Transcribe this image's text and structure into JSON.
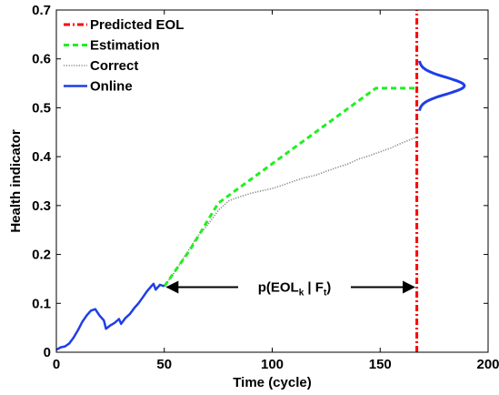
{
  "chart_data": {
    "type": "line",
    "title": "",
    "xlabel": "Time (cycle)",
    "ylabel": "Health indicator",
    "xlim": [
      0,
      200
    ],
    "ylim": [
      0,
      0.7
    ],
    "xticks": [
      "0",
      "50",
      "100",
      "150",
      "200"
    ],
    "yticks": [
      "0",
      "0.1",
      "0.2",
      "0.3",
      "0.4",
      "0.5",
      "0.6",
      "0.7"
    ],
    "grid": false,
    "legend_position": "top-left",
    "series": [
      {
        "name": "Predicted EOL",
        "style": "dash-dot",
        "color": "#ff0000",
        "x": [
          167,
          167
        ],
        "y": [
          0,
          0.7
        ]
      },
      {
        "name": "Estimation",
        "style": "dashed",
        "color": "#22ee22",
        "x": [
          50,
          62,
          75,
          148,
          167
        ],
        "y": [
          0.135,
          0.21,
          0.305,
          0.54,
          0.54
        ]
      },
      {
        "name": "Correct",
        "style": "dotted",
        "color": "#888888",
        "x": [
          50,
          55,
          60,
          65,
          70,
          75,
          80,
          85,
          90,
          95,
          100,
          105,
          110,
          115,
          120,
          125,
          130,
          135,
          140,
          145,
          150,
          155,
          160,
          167
        ],
        "y": [
          0.135,
          0.165,
          0.2,
          0.235,
          0.26,
          0.29,
          0.31,
          0.318,
          0.325,
          0.33,
          0.335,
          0.342,
          0.35,
          0.357,
          0.362,
          0.37,
          0.378,
          0.385,
          0.395,
          0.402,
          0.41,
          0.418,
          0.428,
          0.44
        ]
      },
      {
        "name": "Online",
        "style": "solid",
        "color": "#1f3ee6",
        "x": [
          0,
          2,
          4,
          6,
          8,
          10,
          12,
          14,
          16,
          18,
          20,
          22,
          23,
          25,
          27,
          29,
          30,
          32,
          34,
          36,
          38,
          40,
          42,
          44,
          45,
          46,
          48,
          50
        ],
        "y": [
          0.005,
          0.01,
          0.012,
          0.018,
          0.03,
          0.045,
          0.062,
          0.075,
          0.085,
          0.088,
          0.075,
          0.065,
          0.048,
          0.055,
          0.06,
          0.068,
          0.058,
          0.07,
          0.078,
          0.09,
          0.1,
          0.112,
          0.125,
          0.135,
          0.14,
          0.128,
          0.138,
          0.135
        ]
      }
    ],
    "distribution": {
      "color": "#1f3ee6",
      "mean": 0.545,
      "sd": 0.017,
      "x_base": 168,
      "x_peak": 189
    },
    "annotation": {
      "text_main": "p(EOL",
      "sub_k": "k",
      "sep": " | F",
      "sub_t": "t",
      "close": ")",
      "x_start": 50,
      "x_end": 167,
      "y": 0.135
    }
  }
}
